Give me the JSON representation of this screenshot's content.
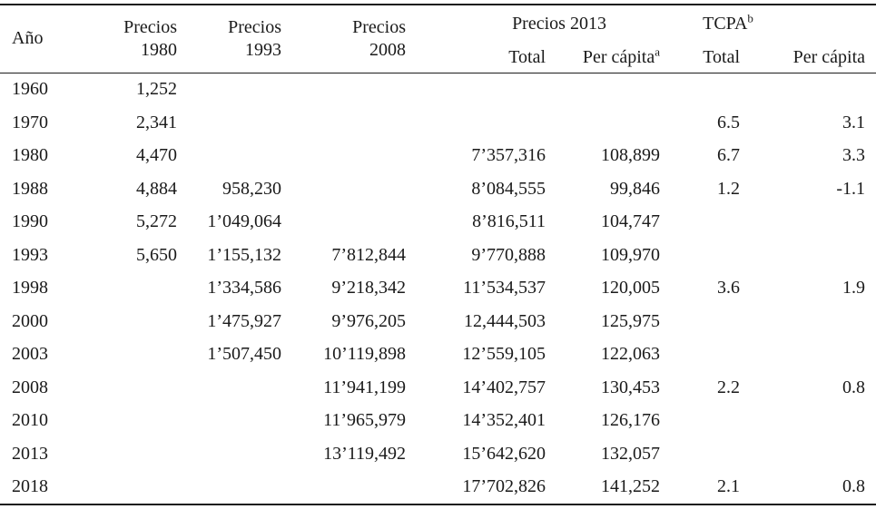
{
  "page": {
    "background_color": "#ffffff",
    "text_color": "#1a1a1a",
    "rule_color": "#1c1c1c"
  },
  "table": {
    "header": {
      "year": "Año",
      "precios_1980": {
        "line1": "Precios",
        "line2": "1980"
      },
      "precios_1993": {
        "line1": "Precios",
        "line2": "1993"
      },
      "precios_2008": {
        "line1": "Precios",
        "line2": "2008"
      },
      "group_precios_2013": {
        "label": "Precios 2013"
      },
      "group_tcpa": {
        "label": "TCPA",
        "superscript": "b"
      },
      "sub_precios_2013_total": "Total",
      "sub_precios_2013_per_capita": {
        "label": "Per cápita",
        "superscript": "a"
      },
      "sub_tcpa_total": "Total",
      "sub_tcpa_per_capita": "Per cápita"
    },
    "row_keys": [
      "year",
      "precios_1980",
      "precios_1993",
      "precios_2008",
      "precios_2013_total",
      "precios_2013_per_capita",
      "tcpa_total",
      "tcpa_per_capita"
    ],
    "rows": [
      {
        "year": "1960",
        "precios_1980": "1,252",
        "precios_1993": "",
        "precios_2008": "",
        "precios_2013_total": "",
        "precios_2013_per_capita": "",
        "tcpa_total": "",
        "tcpa_per_capita": ""
      },
      {
        "year": "1970",
        "precios_1980": "2,341",
        "precios_1993": "",
        "precios_2008": "",
        "precios_2013_total": "",
        "precios_2013_per_capita": "",
        "tcpa_total": "6.5",
        "tcpa_per_capita": "3.1"
      },
      {
        "year": "1980",
        "precios_1980": "4,470",
        "precios_1993": "",
        "precios_2008": "",
        "precios_2013_total": "7’357,316",
        "precios_2013_per_capita": "108,899",
        "tcpa_total": "6.7",
        "tcpa_per_capita": "3.3"
      },
      {
        "year": "1988",
        "precios_1980": "4,884",
        "precios_1993": "958,230",
        "precios_2008": "",
        "precios_2013_total": "8’084,555",
        "precios_2013_per_capita": "99,846",
        "tcpa_total": "1.2",
        "tcpa_per_capita": "-1.1"
      },
      {
        "year": "1990",
        "precios_1980": "5,272",
        "precios_1993": "1’049,064",
        "precios_2008": "",
        "precios_2013_total": "8’816,511",
        "precios_2013_per_capita": "104,747",
        "tcpa_total": "",
        "tcpa_per_capita": ""
      },
      {
        "year": "1993",
        "precios_1980": "5,650",
        "precios_1993": "1’155,132",
        "precios_2008": "7’812,844",
        "precios_2013_total": "9’770,888",
        "precios_2013_per_capita": "109,970",
        "tcpa_total": "",
        "tcpa_per_capita": ""
      },
      {
        "year": "1998",
        "precios_1980": "",
        "precios_1993": "1’334,586",
        "precios_2008": "9’218,342",
        "precios_2013_total": "11’534,537",
        "precios_2013_per_capita": "120,005",
        "tcpa_total": "3.6",
        "tcpa_per_capita": "1.9"
      },
      {
        "year": "2000",
        "precios_1980": "",
        "precios_1993": "1’475,927",
        "precios_2008": "9’976,205",
        "precios_2013_total": "12,444,503",
        "precios_2013_per_capita": "125,975",
        "tcpa_total": "",
        "tcpa_per_capita": ""
      },
      {
        "year": "2003",
        "precios_1980": "",
        "precios_1993": "1’507,450",
        "precios_2008": "10’119,898",
        "precios_2013_total": "12’559,105",
        "precios_2013_per_capita": "122,063",
        "tcpa_total": "",
        "tcpa_per_capita": ""
      },
      {
        "year": "2008",
        "precios_1980": "",
        "precios_1993": "",
        "precios_2008": "11’941,199",
        "precios_2013_total": "14’402,757",
        "precios_2013_per_capita": "130,453",
        "tcpa_total": "2.2",
        "tcpa_per_capita": "0.8"
      },
      {
        "year": "2010",
        "precios_1980": "",
        "precios_1993": "",
        "precios_2008": "11’965,979",
        "precios_2013_total": "14’352,401",
        "precios_2013_per_capita": "126,176",
        "tcpa_total": "",
        "tcpa_per_capita": ""
      },
      {
        "year": "2013",
        "precios_1980": "",
        "precios_1993": "",
        "precios_2008": "13’119,492",
        "precios_2013_total": "15’642,620",
        "precios_2013_per_capita": "132,057",
        "tcpa_total": "",
        "tcpa_per_capita": ""
      },
      {
        "year": "2018",
        "precios_1980": "",
        "precios_1993": "",
        "precios_2008": "",
        "precios_2013_total": "17’702,826",
        "precios_2013_per_capita": "141,252",
        "tcpa_total": "2.1",
        "tcpa_per_capita": "0.8"
      }
    ]
  }
}
